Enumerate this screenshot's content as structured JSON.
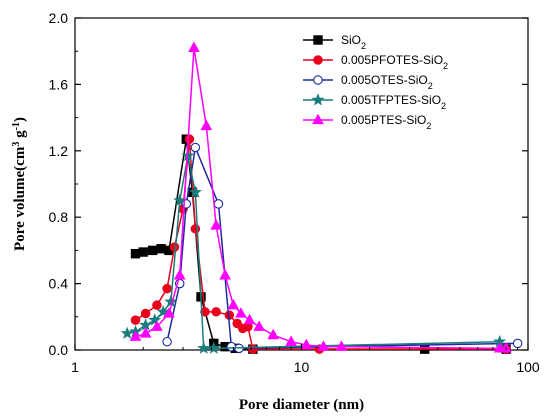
{
  "chart_data": {
    "type": "line",
    "xlabel": "Pore diameter (nm)",
    "ylabel": "Pore volume(cm^3 g^-1)",
    "xscale": "log",
    "xlim": [
      1,
      100
    ],
    "ylim": [
      0,
      2.0
    ],
    "x_ticks": [
      1,
      10,
      100
    ],
    "x_tick_labels": [
      "1",
      "10",
      "100"
    ],
    "y_ticks": [
      0.0,
      0.4,
      0.8,
      1.2,
      1.6,
      2.0
    ],
    "y_tick_labels": [
      "0.0",
      "0.4",
      "0.8",
      "1.2",
      "1.6",
      "2.0"
    ],
    "legend_position": "top-right",
    "grid": false,
    "series": [
      {
        "name": "SiO2",
        "name_base": "SiO",
        "name_sub": "2",
        "color": "#000000",
        "marker": "square",
        "fill": true,
        "x": [
          1.85,
          2.0,
          2.2,
          2.4,
          2.6,
          3.1,
          3.3,
          3.6,
          4.1,
          4.6,
          5.1,
          6.1,
          35,
          80
        ],
        "y": [
          0.58,
          0.59,
          0.6,
          0.61,
          0.6,
          1.27,
          0.95,
          0.32,
          0.04,
          0.02,
          0.01,
          0.005,
          0.005,
          0.005
        ]
      },
      {
        "name": "0.005PFOTES-SiO2",
        "name_base": "0.005PFOTES-SiO",
        "name_sub": "2",
        "color": "#e8001c",
        "marker": "circle",
        "fill": true,
        "x": [
          1.85,
          2.05,
          2.3,
          2.55,
          2.75,
          3.0,
          3.2,
          3.4,
          3.75,
          4.2,
          4.8,
          5.2,
          5.5,
          5.8,
          6.1,
          12,
          80
        ],
        "y": [
          0.18,
          0.22,
          0.27,
          0.37,
          0.62,
          0.85,
          1.27,
          0.73,
          0.23,
          0.23,
          0.21,
          0.16,
          0.13,
          0.14,
          0.005,
          0.005,
          0.005
        ]
      },
      {
        "name": "0.005OTES-SiO2",
        "name_base": "0.005OTES-SiO",
        "name_sub": "2",
        "color": "#1d2a9e",
        "marker": "circle",
        "fill": false,
        "x": [
          2.55,
          2.9,
          3.1,
          3.4,
          4.3,
          4.9,
          5.3,
          90
        ],
        "y": [
          0.05,
          0.4,
          0.88,
          1.22,
          0.88,
          0.02,
          0.01,
          0.04
        ]
      },
      {
        "name": "0.005TFPTES-SiO2",
        "name_base": "0.005TFPTES-SiO",
        "name_sub": "2",
        "color": "#1b7c7c",
        "marker": "star",
        "fill": true,
        "x": [
          1.7,
          1.85,
          2.05,
          2.25,
          2.45,
          2.65,
          2.9,
          3.15,
          3.4,
          3.7,
          4.1,
          75
        ],
        "y": [
          0.1,
          0.11,
          0.15,
          0.18,
          0.23,
          0.29,
          0.9,
          1.17,
          0.95,
          0.01,
          0.01,
          0.05
        ]
      },
      {
        "name": "0.005PTES-SiO2",
        "name_base": "0.005PTES-SiO",
        "name_sub": "2",
        "color": "#ff00ff",
        "marker": "triangle",
        "fill": true,
        "x": [
          1.85,
          2.05,
          2.3,
          2.6,
          2.9,
          3.35,
          3.8,
          4.2,
          4.6,
          5.0,
          5.4,
          5.9,
          6.5,
          7.5,
          9.0,
          10.5,
          12.5,
          15,
          75,
          80
        ],
        "y": [
          0.08,
          0.1,
          0.14,
          0.22,
          0.45,
          1.82,
          1.35,
          0.75,
          0.45,
          0.27,
          0.22,
          0.18,
          0.14,
          0.09,
          0.05,
          0.03,
          0.02,
          0.02,
          0.01,
          0.01
        ]
      }
    ]
  }
}
